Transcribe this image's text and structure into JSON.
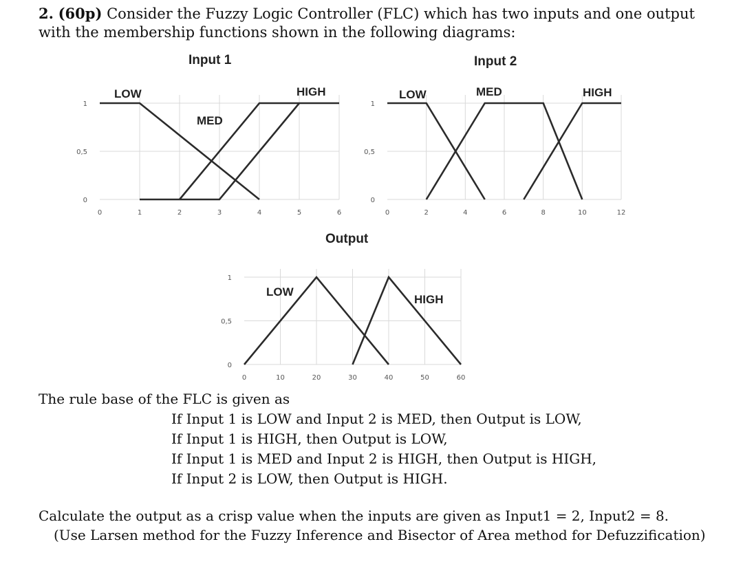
{
  "problem": {
    "number": "2.",
    "points": "(60p)",
    "statement_line1": "Consider the Fuzzy Logic Controller (FLC) which has two inputs and one output",
    "statement_line2": "with the membership functions shown in the following diagrams:"
  },
  "chart_data": [
    {
      "type": "line",
      "title": "Input 1",
      "x_ticks": [
        "0",
        "1",
        "2",
        "3",
        "4",
        "5",
        "6"
      ],
      "y_ticks": [
        "0",
        "0,5",
        "1"
      ],
      "xlim": [
        0,
        6
      ],
      "ylim": [
        0,
        1
      ],
      "grid": true,
      "series": [
        {
          "name": "LOW",
          "x": [
            0,
            1,
            4
          ],
          "y": [
            1,
            1,
            0
          ]
        },
        {
          "name": "MED",
          "x": [
            1,
            3,
            5
          ],
          "y": [
            0,
            0,
            1
          ]
        },
        {
          "name": "HIGH",
          "x": [
            2,
            4,
            6
          ],
          "y": [
            0,
            1,
            1
          ]
        }
      ]
    },
    {
      "type": "line",
      "title": "Input 2",
      "x_ticks": [
        "0",
        "2",
        "4",
        "6",
        "8",
        "10",
        "12"
      ],
      "y_ticks": [
        "0",
        "0,5",
        "1"
      ],
      "xlim": [
        0,
        12
      ],
      "ylim": [
        0,
        1
      ],
      "grid": true,
      "series": [
        {
          "name": "LOW",
          "x": [
            0,
            2,
            5
          ],
          "y": [
            1,
            1,
            0
          ]
        },
        {
          "name": "MED",
          "x": [
            2,
            5,
            8,
            10
          ],
          "y": [
            0,
            1,
            1,
            0
          ]
        },
        {
          "name": "HIGH",
          "x": [
            7,
            10,
            12
          ],
          "y": [
            0,
            1,
            1
          ]
        }
      ]
    },
    {
      "type": "line",
      "title": "Output",
      "x_ticks": [
        "0",
        "10",
        "20",
        "30",
        "40",
        "50",
        "60"
      ],
      "y_ticks": [
        "0",
        "0,5",
        "1"
      ],
      "xlim": [
        0,
        60
      ],
      "ylim": [
        0,
        1
      ],
      "grid": true,
      "series": [
        {
          "name": "LOW",
          "x": [
            0,
            20,
            40
          ],
          "y": [
            0,
            1,
            0
          ]
        },
        {
          "name": "HIGH",
          "x": [
            30,
            40,
            60
          ],
          "y": [
            0,
            1,
            0
          ]
        }
      ]
    }
  ],
  "rules": {
    "intro": "The rule base of the FLC is given as",
    "items": [
      "If Input 1 is LOW and Input 2 is MED, then Output is LOW,",
      "If Input 1 is HIGH, then Output is LOW,",
      "If Input 1 is MED and Input 2 is HIGH, then Output is HIGH,",
      "If Input 2 is LOW, then Output is HIGH."
    ]
  },
  "task": {
    "line1": "Calculate the output as a crisp value when the inputs are given as Input1 = 2, Input2 = 8.",
    "line2": "(Use Larsen method for the Fuzzy Inference and Bisector of Area method for Defuzzification)"
  }
}
